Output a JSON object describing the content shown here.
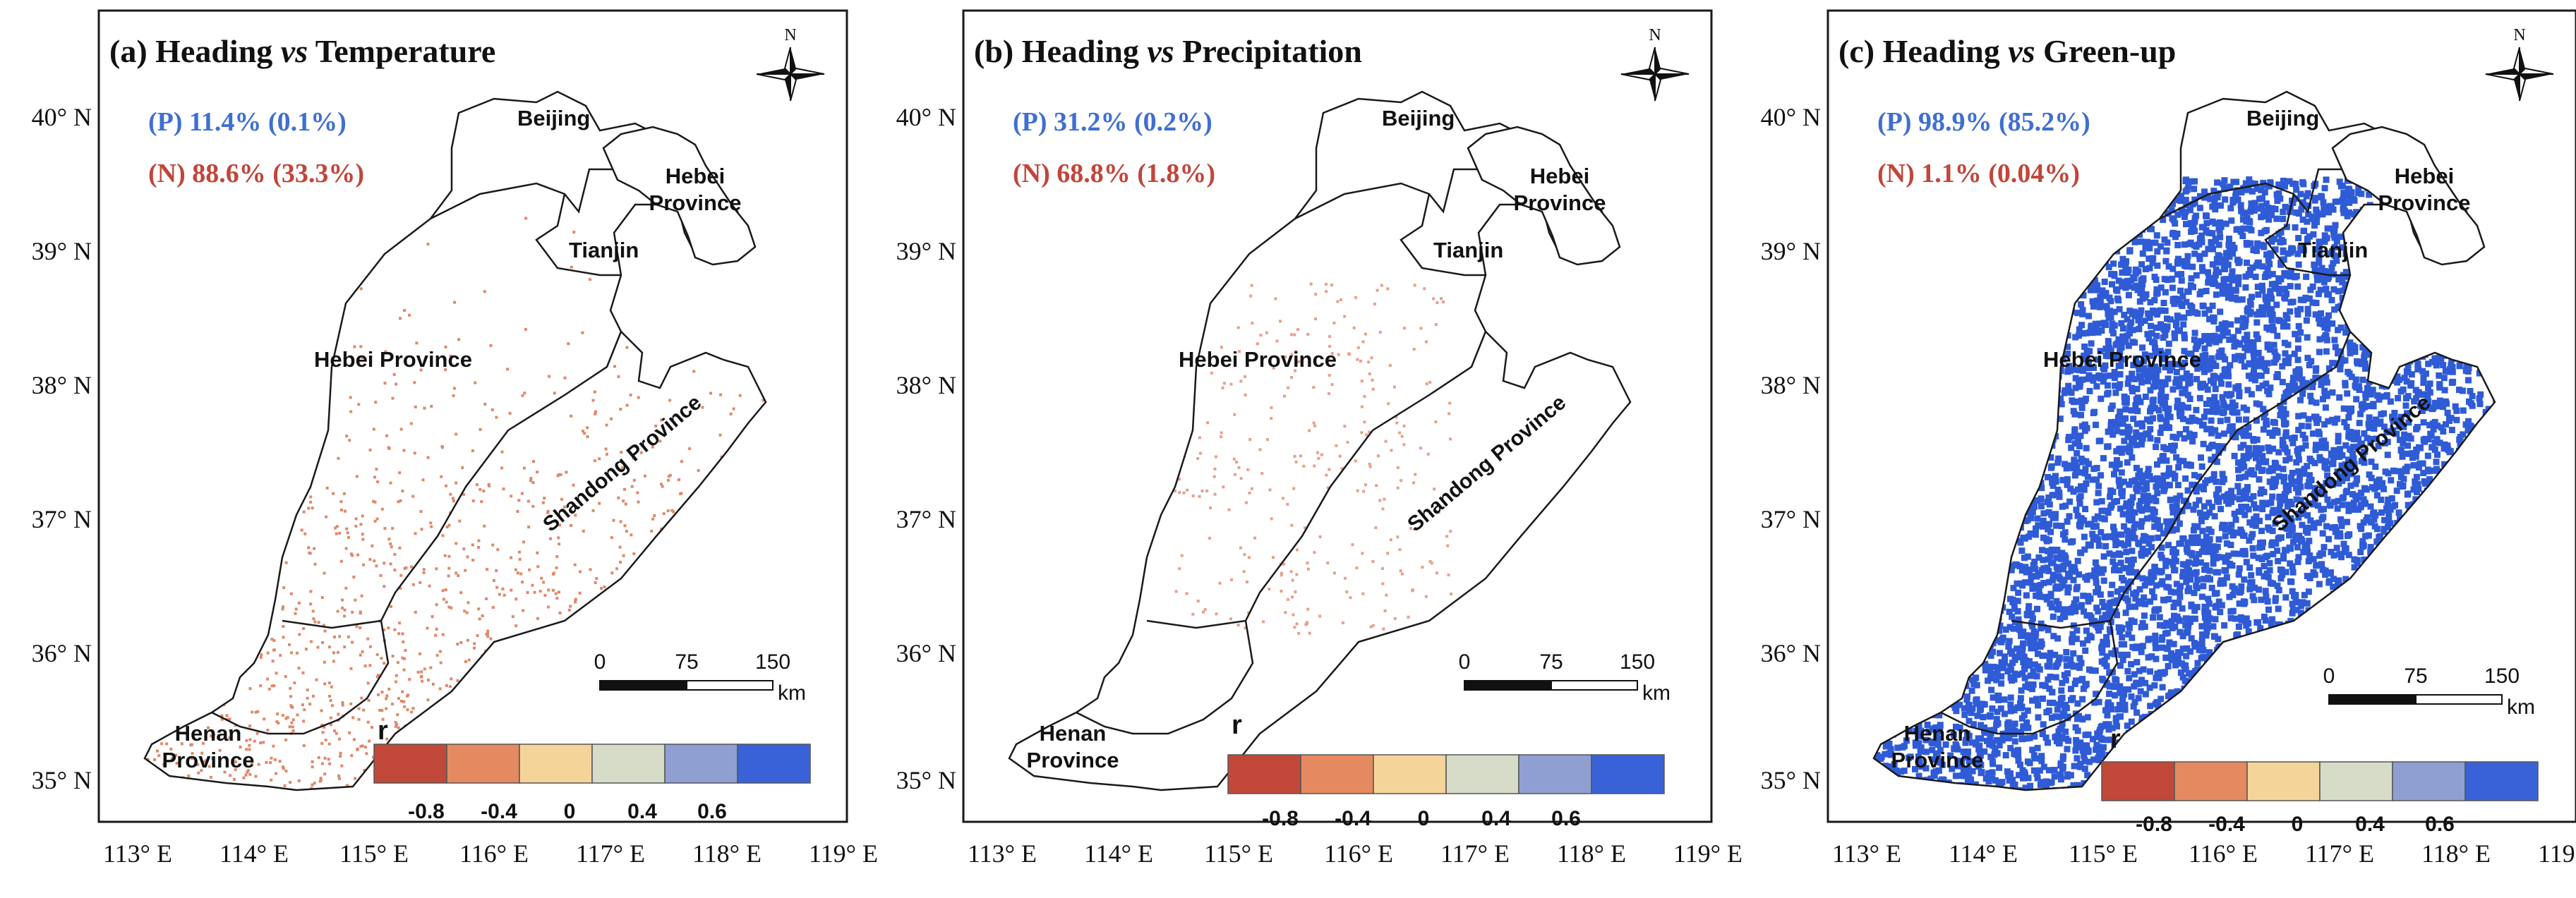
{
  "colors": {
    "positive_text": "#3f6fd1",
    "negative_text": "#c0463a",
    "outline": "#1a1a1a",
    "scale": [
      "#c2483a",
      "#e58a60",
      "#f5d49a",
      "#d6dcc8",
      "#8f9fd2",
      "#3a62d8"
    ]
  },
  "axes": {
    "y_ticks": [
      "40° N",
      "39° N",
      "38° N",
      "37° N",
      "36° N",
      "35° N"
    ],
    "x_ticks": [
      "113° E",
      "114° E",
      "115° E",
      "116° E",
      "117° E",
      "118° E",
      "119° E"
    ]
  },
  "legend": {
    "title": "r",
    "labels": [
      "-0.8",
      "-0.4",
      "0",
      "0.4",
      "0.6"
    ]
  },
  "scalebar": {
    "labels": [
      "0",
      "75",
      "150"
    ],
    "unit": "km"
  },
  "compass": {
    "label": "N",
    "icon": "north-arrow-icon"
  },
  "regions": {
    "beijing": "Beijing",
    "tianjin": "Tianjin",
    "hebei_ne_line1": "Hebei",
    "hebei_ne_line2": "Province",
    "hebei": "Hebei Province",
    "shandong": "Shandong Province",
    "henan_line1": "Henan",
    "henan_line2": "Province"
  },
  "panels": [
    {
      "label": "(a)",
      "title_a": "Heading",
      "title_vs": "vs",
      "title_b": "Temperature",
      "positive": "(P) 11.4% (0.1%)",
      "negative": "(N) 88.6% (33.3%)",
      "pixel_color": "#e0896a"
    },
    {
      "label": "(b)",
      "title_a": "Heading",
      "title_vs": "vs",
      "title_b": "Precipitation",
      "positive": "(P) 31.2% (0.2%)",
      "negative": "(N) 68.8% (1.8%)",
      "pixel_color": "#e8a08a"
    },
    {
      "label": "(c)",
      "title_a": "Heading",
      "title_vs": "vs",
      "title_b": "Green-up",
      "positive": "(P) 98.9% (85.2%)",
      "negative": "(N) 1.1% (0.04%)",
      "pixel_color": "#2f5bd6"
    }
  ]
}
